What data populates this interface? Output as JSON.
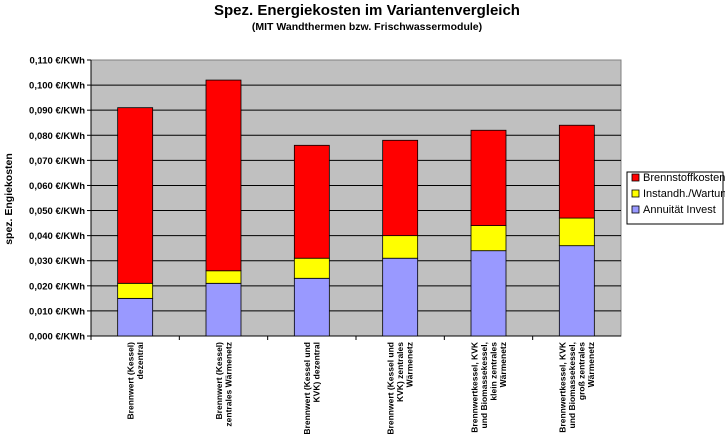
{
  "chart_data": {
    "type": "bar",
    "stacked": true,
    "title": "Spez. Energiekosten im Variantenvergleich",
    "subtitle": "(MIT Wandthermen bzw. Frischwassermodule)",
    "ylabel": "spez. Engiekosten",
    "xlabel": "",
    "ylim": [
      0,
      0.11
    ],
    "ytick_step": 0.01,
    "ytick_labels": [
      "0,000 €/KWh",
      "0,010 €/KWh",
      "0,020 €/KWh",
      "0,030 €/KWh",
      "0,040 €/KWh",
      "0,050 €/KWh",
      "0,060 €/KWh",
      "0,070 €/KWh",
      "0,080 €/KWh",
      "0,090 €/KWh",
      "0,100 €/KWh",
      "0,110 €/KWh"
    ],
    "grid": true,
    "legend_position": "right",
    "categories": [
      [
        "Brennwert (Kessel)",
        "dezentral"
      ],
      [
        "Brennwert (Kessel)",
        "zentrales Wärmenetz"
      ],
      [
        "Brennwert (Kessel und",
        "KVK) dezentral"
      ],
      [
        "Brennwert (Kessel und",
        "KVK) zentrales",
        "Wärmenetz"
      ],
      [
        "Brennwertkessel, KVK",
        "und Biomassekessel,",
        "klein zentrales",
        "Wärmenetz"
      ],
      [
        "Brennwertkessel, KVK",
        "und Biomassekessel,",
        "groß zentrales",
        "Wärmenetz"
      ]
    ],
    "series": [
      {
        "name": "Annuität Invest",
        "color": "#9999ff",
        "values": [
          0.015,
          0.021,
          0.023,
          0.031,
          0.034,
          0.036
        ]
      },
      {
        "name": "Instandh./Wartung",
        "color": "#ffff00",
        "values": [
          0.006,
          0.005,
          0.008,
          0.009,
          0.01,
          0.011
        ]
      },
      {
        "name": "Brennstoffkosten",
        "color": "#ff0000",
        "values": [
          0.07,
          0.076,
          0.045,
          0.038,
          0.038,
          0.037
        ]
      }
    ],
    "legend_order": [
      "Brennstoffkosten",
      "Instandh./Wartung",
      "Annuität Invest"
    ],
    "plot_background": "#c0c0c0"
  }
}
